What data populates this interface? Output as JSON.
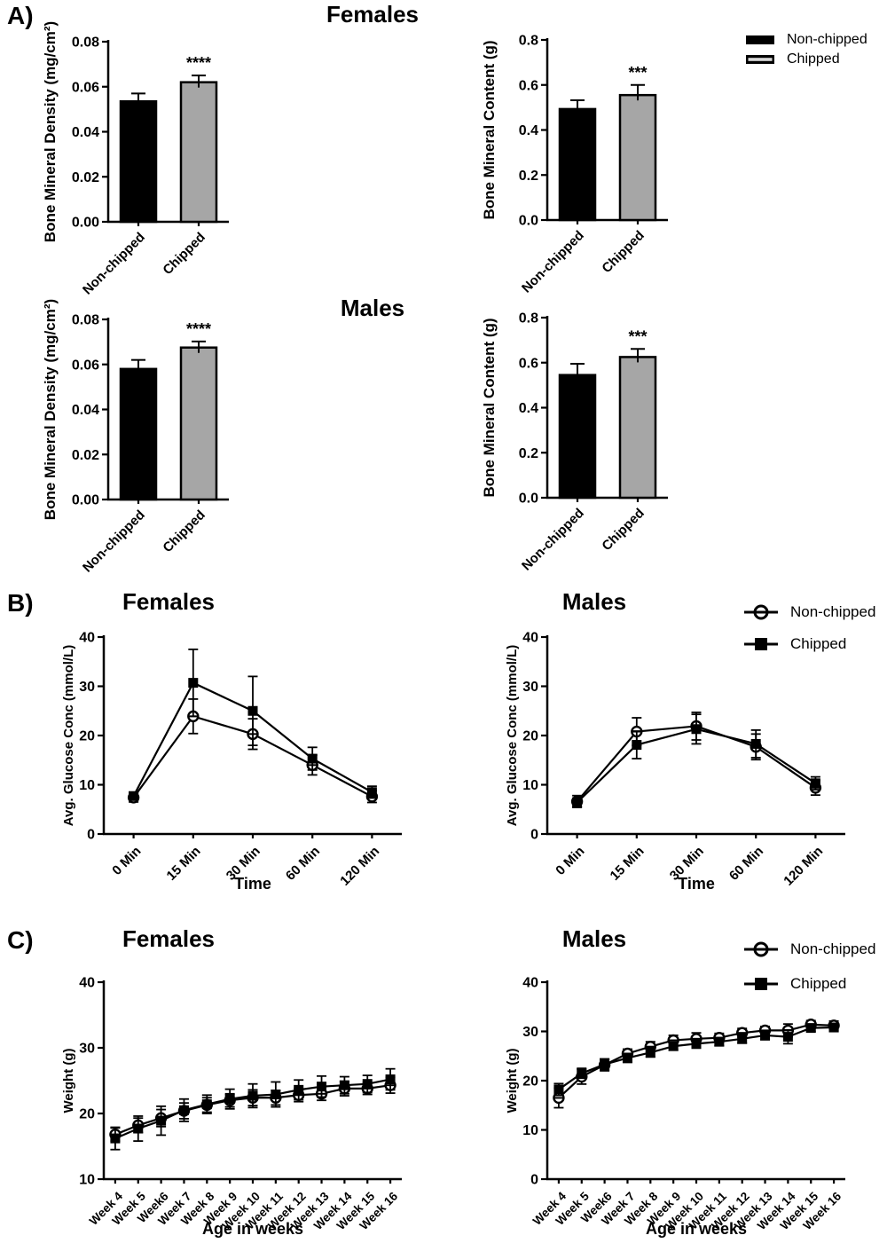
{
  "figure": {
    "panel_a": {
      "label": "A)",
      "row1_title": "Females",
      "row2_title": "Males",
      "legend": {
        "items": [
          {
            "label": "Non-chipped",
            "swatch": "black-bar"
          },
          {
            "label": "Chipped",
            "swatch": "gray-bar"
          }
        ]
      }
    },
    "panel_b": {
      "label": "B)",
      "left_title": "Females",
      "right_title": "Males",
      "legend": {
        "items": [
          {
            "label": "Non-chipped",
            "marker": "open-circle"
          },
          {
            "label": "Chipped",
            "marker": "filled-square"
          }
        ]
      }
    },
    "panel_c": {
      "label": "C)",
      "left_title": "Females",
      "right_title": "Males",
      "legend": {
        "items": [
          {
            "label": "Non-chipped",
            "marker": "open-circle"
          },
          {
            "label": "Chipped",
            "marker": "filled-square"
          }
        ]
      }
    }
  },
  "colors": {
    "bar_black": "#000000",
    "bar_gray": "#a6a6a6",
    "axis": "#000000",
    "background": "#ffffff"
  },
  "chart_data": [
    {
      "id": "bmd_females",
      "type": "bar",
      "panel": "A",
      "group": "Females",
      "ylabel": "Bone Mineral Density (mg/cm²)",
      "ylim": [
        0,
        0.08
      ],
      "yticks": [
        {
          "v": 0,
          "label": "0.00"
        },
        {
          "v": 0.02,
          "label": "0.02"
        },
        {
          "v": 0.04,
          "label": "0.04"
        },
        {
          "v": 0.06,
          "label": "0.06"
        },
        {
          "v": 0.08,
          "label": "0.08"
        }
      ],
      "categories": [
        "Non-chipped",
        "Chipped"
      ],
      "values": [
        0.0535,
        0.062
      ],
      "errors": [
        0.0035,
        0.003
      ],
      "bar_styles": [
        "black",
        "gray"
      ],
      "significance": {
        "index": 1,
        "text": "****"
      }
    },
    {
      "id": "bmc_females",
      "type": "bar",
      "panel": "A",
      "group": "Females",
      "ylabel": "Bone Mineral Content (g)",
      "ylim": [
        0,
        0.8
      ],
      "yticks": [
        {
          "v": 0,
          "label": "0.0"
        },
        {
          "v": 0.2,
          "label": "0.2"
        },
        {
          "v": 0.4,
          "label": "0.4"
        },
        {
          "v": 0.6,
          "label": "0.6"
        },
        {
          "v": 0.8,
          "label": "0.8"
        }
      ],
      "categories": [
        "Non-chipped",
        "Chipped"
      ],
      "values": [
        0.493,
        0.555
      ],
      "errors": [
        0.039,
        0.045
      ],
      "bar_styles": [
        "black",
        "gray"
      ],
      "significance": {
        "index": 1,
        "text": "***"
      }
    },
    {
      "id": "bmd_males",
      "type": "bar",
      "panel": "A",
      "group": "Males",
      "ylabel": "Bone Mineral Density (mg/cm²)",
      "ylim": [
        0,
        0.08
      ],
      "yticks": [
        {
          "v": 0,
          "label": "0.00"
        },
        {
          "v": 0.02,
          "label": "0.02"
        },
        {
          "v": 0.04,
          "label": "0.04"
        },
        {
          "v": 0.06,
          "label": "0.06"
        },
        {
          "v": 0.08,
          "label": "0.08"
        }
      ],
      "categories": [
        "Non-chipped",
        "Chipped"
      ],
      "values": [
        0.058,
        0.0675
      ],
      "errors": [
        0.004,
        0.0027
      ],
      "bar_styles": [
        "black",
        "gray"
      ],
      "significance": {
        "index": 1,
        "text": "****"
      }
    },
    {
      "id": "bmc_males",
      "type": "bar",
      "panel": "A",
      "group": "Males",
      "ylabel": "Bone Mineral Content (g)",
      "ylim": [
        0,
        0.8
      ],
      "yticks": [
        {
          "v": 0,
          "label": "0.0"
        },
        {
          "v": 0.2,
          "label": "0.2"
        },
        {
          "v": 0.4,
          "label": "0.4"
        },
        {
          "v": 0.6,
          "label": "0.6"
        },
        {
          "v": 0.8,
          "label": "0.8"
        }
      ],
      "categories": [
        "Non-chipped",
        "Chipped"
      ],
      "values": [
        0.545,
        0.625
      ],
      "errors": [
        0.05,
        0.036
      ],
      "bar_styles": [
        "black",
        "gray"
      ],
      "significance": {
        "index": 1,
        "text": "***"
      }
    },
    {
      "id": "glucose_females",
      "type": "line",
      "panel": "B",
      "group": "Females",
      "ylabel": "Avg. Glucose Conc (mmol/L)",
      "xlabel": "Time",
      "ylim": [
        0,
        40
      ],
      "yticks": [
        {
          "v": 0,
          "label": "0"
        },
        {
          "v": 10,
          "label": "10"
        },
        {
          "v": 20,
          "label": "20"
        },
        {
          "v": 30,
          "label": "30"
        },
        {
          "v": 40,
          "label": "40"
        }
      ],
      "categories": [
        "0 Min",
        "15 Min",
        "30 Min",
        "60 Min",
        "120 Min"
      ],
      "series": [
        {
          "name": "Non-chipped",
          "marker": "open-circle",
          "values": [
            7.4,
            23.9,
            20.3,
            14.0,
            7.6
          ],
          "errors": [
            0.9,
            3.5,
            3.1,
            2.0,
            1.2
          ]
        },
        {
          "name": "Chipped",
          "marker": "filled-square",
          "values": [
            7.7,
            30.7,
            25.0,
            15.3,
            8.5
          ],
          "errors": [
            0.8,
            6.8,
            7.0,
            2.3,
            1.2
          ]
        }
      ]
    },
    {
      "id": "glucose_males",
      "type": "line",
      "panel": "B",
      "group": "Males",
      "ylabel": "Avg. Glucose Conc (mmol/L)",
      "xlabel": "Time",
      "ylim": [
        0,
        40
      ],
      "yticks": [
        {
          "v": 0,
          "label": "0"
        },
        {
          "v": 10,
          "label": "10"
        },
        {
          "v": 20,
          "label": "20"
        },
        {
          "v": 30,
          "label": "30"
        },
        {
          "v": 40,
          "label": "40"
        }
      ],
      "categories": [
        "0 Min",
        "15 Min",
        "30 Min",
        "60 Min",
        "120 Min"
      ],
      "series": [
        {
          "name": "Non-chipped",
          "marker": "open-circle",
          "values": [
            6.6,
            20.8,
            21.9,
            17.7,
            9.4
          ],
          "errors": [
            1.2,
            2.8,
            2.8,
            2.6,
            1.5
          ]
        },
        {
          "name": "Chipped",
          "marker": "filled-square",
          "values": [
            6.4,
            18.1,
            21.3,
            18.3,
            10.3
          ],
          "errors": [
            0.9,
            2.8,
            3.0,
            2.8,
            1.3
          ]
        }
      ]
    },
    {
      "id": "weight_females",
      "type": "line",
      "panel": "C",
      "group": "Females",
      "ylabel": "Weight (g)",
      "xlabel": "Age in weeks",
      "ylim": [
        10,
        40
      ],
      "yticks": [
        {
          "v": 10,
          "label": "10"
        },
        {
          "v": 20,
          "label": "20"
        },
        {
          "v": 30,
          "label": "30"
        },
        {
          "v": 40,
          "label": "40"
        }
      ],
      "categories": [
        "Week 4",
        "Week 5",
        "Week6",
        "Week 7",
        "Week 8",
        "Week 9",
        "Week 10",
        "Week 11",
        "Week 12",
        "Week 13",
        "Week 14",
        "Week 15",
        "Week 16"
      ],
      "series": [
        {
          "name": "Non-chipped",
          "marker": "open-circle",
          "values": [
            16.8,
            18.2,
            19.3,
            20.4,
            21.3,
            22.0,
            22.4,
            22.4,
            22.8,
            23.0,
            23.8,
            23.8,
            24.3
          ],
          "errors": [
            1.0,
            1.1,
            1.3,
            1.2,
            1.1,
            1.0,
            1.2,
            1.1,
            1.0,
            1.0,
            1.1,
            0.9,
            1.2
          ]
        },
        {
          "name": "Chipped",
          "marker": "filled-square",
          "values": [
            16.2,
            17.7,
            18.9,
            20.5,
            21.4,
            22.2,
            22.7,
            22.9,
            23.6,
            24.1,
            24.3,
            24.5,
            25.2
          ],
          "errors": [
            1.7,
            1.9,
            2.2,
            1.7,
            1.4,
            1.5,
            1.8,
            1.9,
            1.5,
            1.6,
            1.3,
            1.3,
            1.6
          ]
        }
      ]
    },
    {
      "id": "weight_males",
      "type": "line",
      "panel": "C",
      "group": "Males",
      "ylabel": "Weight (g)",
      "xlabel": "Age in weeks",
      "ylim": [
        0,
        40
      ],
      "yticks": [
        {
          "v": 0,
          "label": "0"
        },
        {
          "v": 10,
          "label": "10"
        },
        {
          "v": 20,
          "label": "20"
        },
        {
          "v": 30,
          "label": "30"
        },
        {
          "v": 40,
          "label": "40"
        }
      ],
      "categories": [
        "Week 4",
        "Week 5",
        "Week6",
        "Week 7",
        "Week 8",
        "Week 9",
        "Week 10",
        "Week 11",
        "Week 12",
        "Week 13",
        "Week 14",
        "Week 15",
        "Week 16"
      ],
      "series": [
        {
          "name": "Non-chipped",
          "marker": "open-circle",
          "values": [
            16.5,
            20.8,
            23.2,
            25.5,
            26.9,
            28.2,
            28.5,
            28.7,
            29.7,
            30.2,
            30.2,
            31.4,
            31.2
          ],
          "errors": [
            2.0,
            1.5,
            1.2,
            0.9,
            1.0,
            1.0,
            1.2,
            0.9,
            0.9,
            0.8,
            1.3,
            0.8,
            0.9
          ]
        },
        {
          "name": "Chipped",
          "marker": "filled-square",
          "values": [
            18.2,
            21.5,
            23.3,
            24.6,
            25.7,
            27.0,
            27.5,
            27.9,
            28.5,
            29.2,
            28.9,
            30.7,
            30.8
          ],
          "errors": [
            1.2,
            1.0,
            1.1,
            0.9,
            0.9,
            0.8,
            0.9,
            0.8,
            0.9,
            0.9,
            1.4,
            0.7,
            0.8
          ]
        }
      ]
    }
  ]
}
